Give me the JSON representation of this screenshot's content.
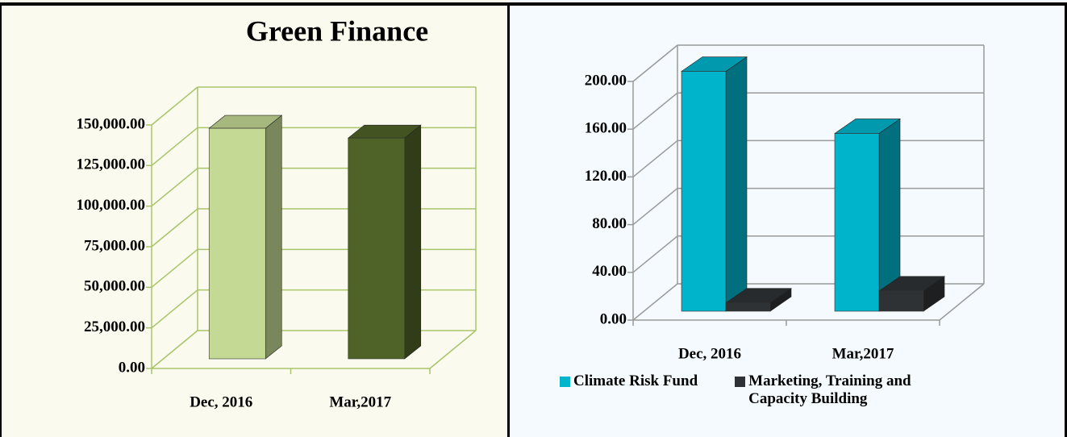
{
  "chart_data": [
    {
      "type": "bar",
      "title": "Green Finance",
      "categories": [
        "Dec, 2016",
        "Mar,2017"
      ],
      "values": [
        142000,
        136000
      ],
      "colors": [
        "#c4d994",
        "#4f6228"
      ],
      "ylim": [
        0,
        150000
      ],
      "yticks": [
        {
          "value": 0,
          "label": "0.00"
        },
        {
          "value": 25000,
          "label": "25,000.00"
        },
        {
          "value": 50000,
          "label": "50,000.00"
        },
        {
          "value": 75000,
          "label": "75,000.00"
        },
        {
          "value": 100000,
          "label": "100,000.00"
        },
        {
          "value": 125000,
          "label": "125,000.00"
        },
        {
          "value": 150000,
          "label": "150,000.00"
        }
      ],
      "grid": true
    },
    {
      "type": "bar",
      "categories": [
        "Dec, 2016",
        "Mar,2017"
      ],
      "series": [
        {
          "name": "Climate Risk Fund",
          "color": "#00b4cc",
          "values": [
            201,
            149
          ]
        },
        {
          "name": "Marketing, Training and Capacity Building",
          "color": "#2f3235",
          "values": [
            7,
            17
          ]
        }
      ],
      "ylim": [
        0,
        200
      ],
      "yticks": [
        {
          "value": 0,
          "label": "0.00"
        },
        {
          "value": 40,
          "label": "40.00"
        },
        {
          "value": 80,
          "label": "80.00"
        },
        {
          "value": 120,
          "label": "120.00"
        },
        {
          "value": 160,
          "label": "160.00"
        },
        {
          "value": 200,
          "label": "200.00"
        }
      ],
      "grid": true,
      "legend": "bottom"
    }
  ]
}
